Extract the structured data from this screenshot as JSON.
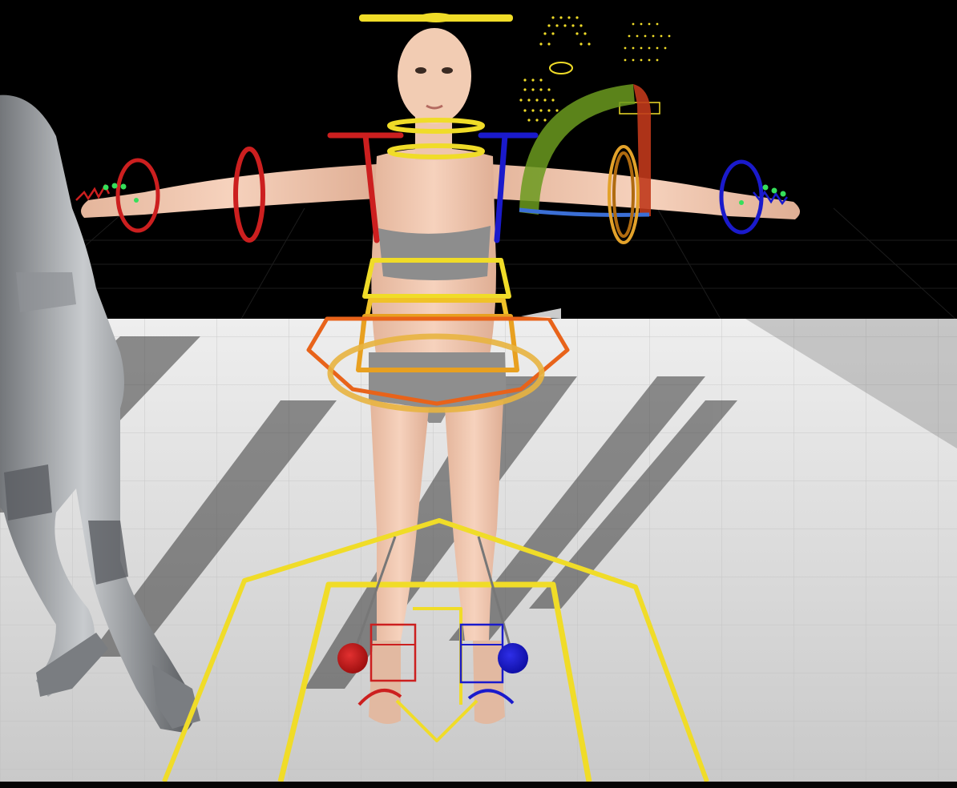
{
  "viewport": {
    "kind": "3d-viewport",
    "scene": "control-rig-t-pose",
    "background_color": "#000000",
    "floor_color": "#d9d9d9"
  },
  "rig_colors": {
    "center": "#f0dc28",
    "left": "#cc1f1f",
    "right": "#1a1acc",
    "pelvis": "#e8631a",
    "ik_arc": "#6b9a1e",
    "ik_arc_edge": "#c0391b",
    "finger_dots": "#35e05a",
    "orange_ring": "#e3a22a"
  },
  "controls": [
    {
      "name": "head-control",
      "icon": "bar-icon"
    },
    {
      "name": "neck-control",
      "icon": "ring-icon"
    },
    {
      "name": "chest-control",
      "icon": "box-icon"
    },
    {
      "name": "spine-control",
      "icon": "box-icon"
    },
    {
      "name": "pelvis-control",
      "icon": "octagon-icon"
    },
    {
      "name": "hips-control",
      "icon": "ring-icon"
    },
    {
      "name": "body-offset-control",
      "icon": "pentagon-icon"
    },
    {
      "name": "root-control",
      "icon": "square-icon"
    },
    {
      "name": "clavicle-left-control",
      "icon": "t-icon"
    },
    {
      "name": "clavicle-right-control",
      "icon": "t-icon"
    },
    {
      "name": "upperarm-left-control",
      "icon": "ring-icon"
    },
    {
      "name": "wrist-left-control",
      "icon": "ring-icon"
    },
    {
      "name": "upperarm-right-control",
      "icon": "ring-icon"
    },
    {
      "name": "wrist-right-control",
      "icon": "ring-icon"
    },
    {
      "name": "ik-fk-switch-arc",
      "icon": "arc-icon"
    },
    {
      "name": "foot-ik-left-control",
      "icon": "ball-icon"
    },
    {
      "name": "foot-ik-right-control",
      "icon": "ball-icon"
    },
    {
      "name": "face-control-board",
      "icon": "dots-icon"
    }
  ]
}
